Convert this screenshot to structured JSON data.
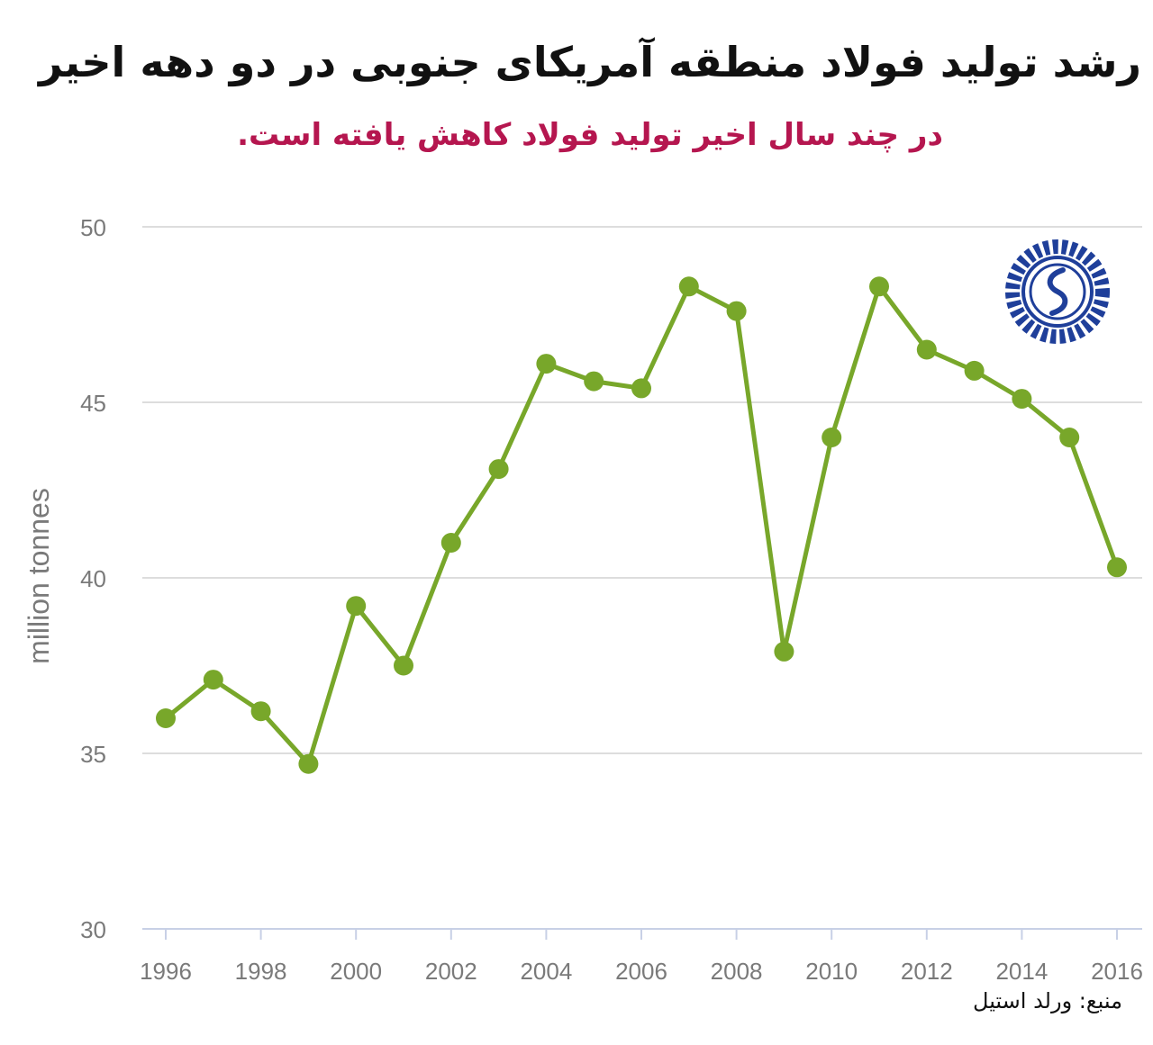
{
  "header": {
    "title": "رشد تولید فولاد منطقه آمریکای جنوبی در دو دهه اخیر",
    "subtitle": "در چند سال اخیر تولید فولاد کاهش یافته است."
  },
  "footer": {
    "source": "منبع: ورلد استیل"
  },
  "logo": {
    "icon": "emblem-logo",
    "color": "#1f3f9a"
  },
  "chart_data": {
    "type": "line",
    "title": "",
    "xlabel": "",
    "ylabel": "million tonnes",
    "ylim": [
      30,
      50
    ],
    "xlim": [
      1996,
      2016
    ],
    "yticks": [
      30,
      35,
      40,
      45,
      50
    ],
    "xticks": [
      1996,
      1998,
      2000,
      2002,
      2004,
      2006,
      2008,
      2010,
      2012,
      2014,
      2016
    ],
    "grid": true,
    "legend": "none",
    "color": "#78a72a",
    "series": [
      {
        "x": [
          1996,
          1997,
          1998,
          1999,
          2000,
          2001,
          2002,
          2003,
          2004,
          2005,
          2006,
          2007,
          2008,
          2009,
          2010,
          2011,
          2012,
          2013,
          2014,
          2015,
          2016
        ],
        "values": [
          36.0,
          37.1,
          36.2,
          34.7,
          39.2,
          37.5,
          41.0,
          43.1,
          46.1,
          45.6,
          45.4,
          48.3,
          47.6,
          37.9,
          44.0,
          48.3,
          46.5,
          45.9,
          45.1,
          44.0,
          40.3
        ]
      }
    ]
  }
}
